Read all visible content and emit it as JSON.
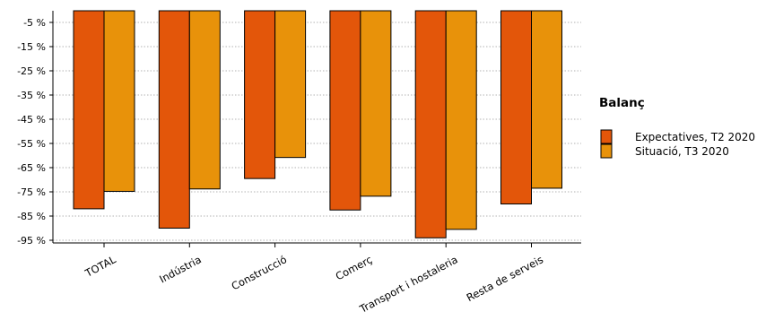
{
  "chart_data": {
    "type": "bar",
    "title": "",
    "xlabel": "",
    "ylabel": "",
    "categories": [
      "TOTAL",
      "Indústria",
      "Construcció",
      "Comerç",
      "Transport i hostaleria",
      "Resta de serveis"
    ],
    "series": [
      {
        "name": "Expectatives, T2 2020",
        "color": "#e3560a",
        "values": [
          -82,
          -90,
          -69.5,
          -82.5,
          -94,
          -80
        ]
      },
      {
        "name": "Situació, T3 2020",
        "color": "#e8920a",
        "values": [
          -74.8,
          -73.8,
          -60.8,
          -76.8,
          -90.5,
          -73.5
        ]
      }
    ],
    "y_tick_values": [
      -5,
      -15,
      -25,
      -35,
      -45,
      -55,
      -65,
      -75,
      -85,
      -95
    ],
    "y_tick_labels": [
      "-5 %",
      "-15 %",
      "-25 %",
      "-35 %",
      "-45 %",
      "-55 %",
      "-65 %",
      "-75 %",
      "-85 %",
      "-95 %"
    ],
    "ylim": [
      -96,
      -1
    ],
    "grid": "horizontal dotted",
    "legend": {
      "title": "Balanç",
      "position": "right"
    }
  }
}
